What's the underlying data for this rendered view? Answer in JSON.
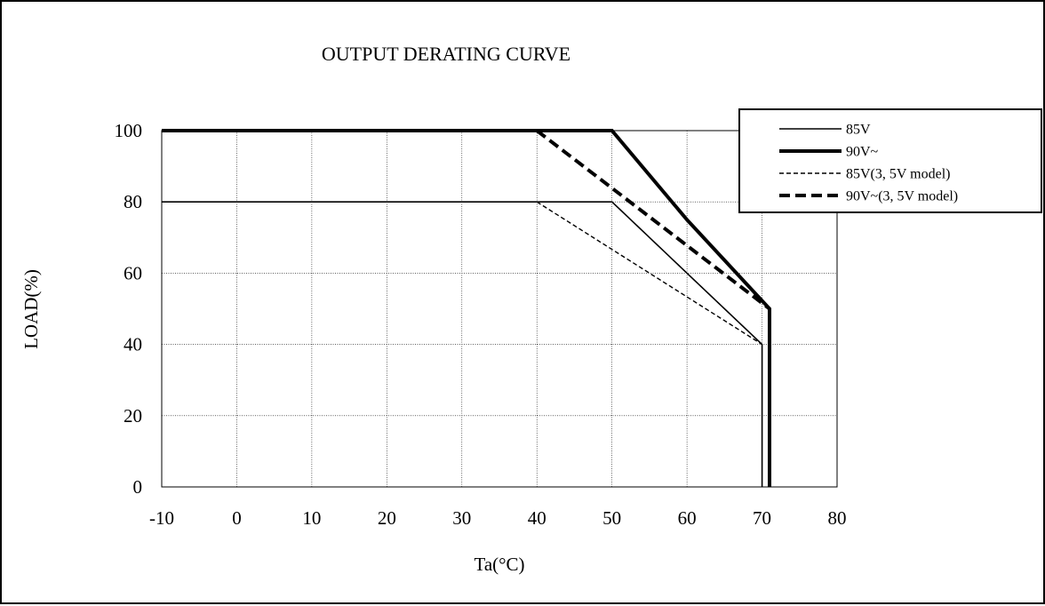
{
  "chart_data": {
    "type": "line",
    "title": "OUTPUT DERATING CURVE",
    "xlabel": "Ta(°C)",
    "ylabel": "LOAD(%)",
    "xlim": [
      -10,
      80
    ],
    "ylim": [
      0,
      100
    ],
    "xticks": [
      -10,
      0,
      10,
      20,
      30,
      40,
      50,
      60,
      70,
      80
    ],
    "yticks": [
      0,
      20,
      40,
      60,
      80,
      100
    ],
    "grid": true,
    "legend_position": "top-right",
    "series": [
      {
        "name": "85V",
        "style": "thin-solid",
        "x": [
          -10,
          50,
          60,
          70,
          70
        ],
        "y": [
          80,
          80,
          60,
          40,
          0
        ]
      },
      {
        "name": "90V~",
        "style": "thick-solid",
        "x": [
          -10,
          50,
          60,
          71,
          71
        ],
        "y": [
          100,
          100,
          75,
          50,
          0
        ]
      },
      {
        "name": "85V(3, 5V model)",
        "style": "thin-dashed",
        "x": [
          40,
          70
        ],
        "y": [
          80,
          40
        ]
      },
      {
        "name": "90V~(3, 5V model)",
        "style": "thick-dashed",
        "x": [
          40,
          71
        ],
        "y": [
          100,
          50
        ]
      }
    ],
    "colors": {
      "line": "#000000",
      "grid": "#000000",
      "background": "#ffffff"
    }
  }
}
